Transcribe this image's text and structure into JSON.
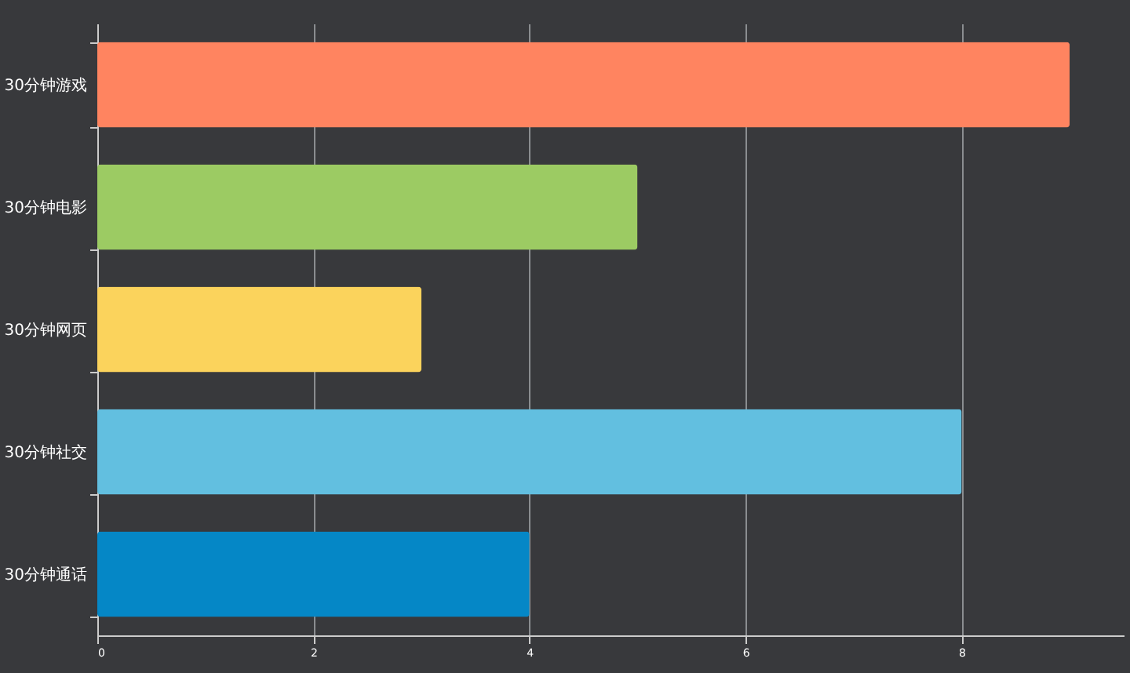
{
  "chart_data": {
    "type": "bar",
    "orientation": "horizontal",
    "categories": [
      "30分钟游戏",
      "30分钟电影",
      "30分钟网页",
      "30分钟社交",
      "30分钟通话"
    ],
    "values": [
      9,
      5,
      3,
      8,
      4
    ],
    "colors": [
      "#ff8460",
      "#9ccb63",
      "#fbd35c",
      "#62bfe0",
      "#0587c6"
    ],
    "xlim": [
      0,
      9.5
    ],
    "xticks": [
      0,
      2,
      4,
      6,
      8
    ],
    "grid": "x"
  }
}
